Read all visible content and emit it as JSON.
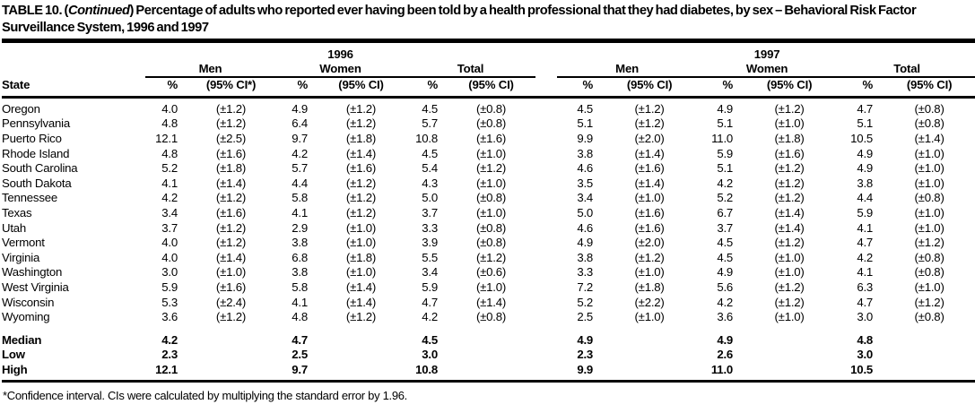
{
  "title": {
    "prefix": "TABLE 10. (",
    "continued": "Continued",
    "suffix": ") Percentage of adults who reported ever having been told by a health professional that they had diabetes, by sex – Behavioral Risk Factor Surveillance System, 1996 and 1997"
  },
  "table": {
    "state_label": "State",
    "years": [
      "1996",
      "1997"
    ],
    "groups": [
      "Men",
      "Women",
      "Total"
    ],
    "pct_label": "%",
    "ci_star_label": "(95% CI*)",
    "ci_label": "(95% CI)",
    "rows": [
      {
        "state": "Oregon",
        "cells": [
          "4.0",
          "(±1.2)",
          "4.9",
          "(±1.2)",
          "4.5",
          "(±0.8)",
          "4.5",
          "(±1.2)",
          "4.9",
          "(±1.2)",
          "4.7",
          "(±0.8)"
        ]
      },
      {
        "state": "Pennsylvania",
        "cells": [
          "4.8",
          "(±1.2)",
          "6.4",
          "(±1.2)",
          "5.7",
          "(±0.8)",
          "5.1",
          "(±1.2)",
          "5.1",
          "(±1.0)",
          "5.1",
          "(±0.8)"
        ]
      },
      {
        "state": "Puerto Rico",
        "cells": [
          "12.1",
          "(±2.5)",
          "9.7",
          "(±1.8)",
          "10.8",
          "(±1.6)",
          "9.9",
          "(±2.0)",
          "11.0",
          "(±1.8)",
          "10.5",
          "(±1.4)"
        ]
      },
      {
        "state": "Rhode Island",
        "cells": [
          "4.8",
          "(±1.6)",
          "4.2",
          "(±1.4)",
          "4.5",
          "(±1.0)",
          "3.8",
          "(±1.4)",
          "5.9",
          "(±1.6)",
          "4.9",
          "(±1.0)"
        ]
      },
      {
        "state": "South Carolina",
        "cells": [
          "5.2",
          "(±1.8)",
          "5.7",
          "(±1.6)",
          "5.4",
          "(±1.2)",
          "4.6",
          "(±1.6)",
          "5.1",
          "(±1.2)",
          "4.9",
          "(±1.0)"
        ]
      },
      {
        "state": "South Dakota",
        "cells": [
          "4.1",
          "(±1.4)",
          "4.4",
          "(±1.2)",
          "4.3",
          "(±1.0)",
          "3.5",
          "(±1.4)",
          "4.2",
          "(±1.2)",
          "3.8",
          "(±1.0)"
        ]
      },
      {
        "state": "Tennessee",
        "cells": [
          "4.2",
          "(±1.2)",
          "5.8",
          "(±1.2)",
          "5.0",
          "(±0.8)",
          "3.4",
          "(±1.0)",
          "5.2",
          "(±1.2)",
          "4.4",
          "(±0.8)"
        ]
      },
      {
        "state": "Texas",
        "cells": [
          "3.4",
          "(±1.6)",
          "4.1",
          "(±1.2)",
          "3.7",
          "(±1.0)",
          "5.0",
          "(±1.6)",
          "6.7",
          "(±1.4)",
          "5.9",
          "(±1.0)"
        ]
      },
      {
        "state": "Utah",
        "cells": [
          "3.7",
          "(±1.2)",
          "2.9",
          "(±1.0)",
          "3.3",
          "(±0.8)",
          "4.6",
          "(±1.6)",
          "3.7",
          "(±1.4)",
          "4.1",
          "(±1.0)"
        ]
      },
      {
        "state": "Vermont",
        "cells": [
          "4.0",
          "(±1.2)",
          "3.8",
          "(±1.0)",
          "3.9",
          "(±0.8)",
          "4.9",
          "(±2.0)",
          "4.5",
          "(±1.2)",
          "4.7",
          "(±1.2)"
        ]
      },
      {
        "state": "Virginia",
        "cells": [
          "4.0",
          "(±1.4)",
          "6.8",
          "(±1.8)",
          "5.5",
          "(±1.2)",
          "3.8",
          "(±1.2)",
          "4.5",
          "(±1.0)",
          "4.2",
          "(±0.8)"
        ]
      },
      {
        "state": "Washington",
        "cells": [
          "3.0",
          "(±1.0)",
          "3.8",
          "(±1.0)",
          "3.4",
          "(±0.6)",
          "3.3",
          "(±1.0)",
          "4.9",
          "(±1.0)",
          "4.1",
          "(±0.8)"
        ]
      },
      {
        "state": "West Virginia",
        "cells": [
          "5.9",
          "(±1.6)",
          "5.8",
          "(±1.4)",
          "5.9",
          "(±1.0)",
          "7.2",
          "(±1.8)",
          "5.6",
          "(±1.2)",
          "6.3",
          "(±1.0)"
        ]
      },
      {
        "state": "Wisconsin",
        "cells": [
          "5.3",
          "(±2.4)",
          "4.1",
          "(±1.4)",
          "4.7",
          "(±1.4)",
          "5.2",
          "(±2.2)",
          "4.2",
          "(±1.2)",
          "4.7",
          "(±1.2)"
        ]
      },
      {
        "state": "Wyoming",
        "cells": [
          "3.6",
          "(±1.2)",
          "4.8",
          "(±1.2)",
          "4.2",
          "(±0.8)",
          "2.5",
          "(±1.0)",
          "3.6",
          "(±1.0)",
          "3.0",
          "(±0.8)"
        ]
      }
    ],
    "summary_rows": [
      {
        "state": "Median",
        "cells": [
          "4.2",
          "",
          "4.7",
          "",
          "4.5",
          "",
          "4.9",
          "",
          "4.9",
          "",
          "4.8",
          ""
        ]
      },
      {
        "state": "Low",
        "cells": [
          "2.3",
          "",
          "2.5",
          "",
          "3.0",
          "",
          "2.3",
          "",
          "2.6",
          "",
          "3.0",
          ""
        ]
      },
      {
        "state": "High",
        "cells": [
          "12.1",
          "",
          "9.7",
          "",
          "10.8",
          "",
          "9.9",
          "",
          "11.0",
          "",
          "10.5",
          ""
        ]
      }
    ]
  },
  "footnote": "*Confidence interval. CIs were calculated by multiplying the standard error by 1.96."
}
